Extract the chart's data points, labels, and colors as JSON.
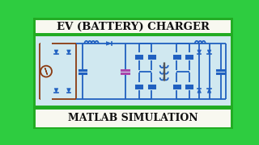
{
  "title_text": "EV (BATTERY) CHARGER",
  "subtitle_text": "MATLAB SIMULATION",
  "bg_outer": "#2ecc40",
  "bg_circuit": "#d0e8f0",
  "bg_banner": "#f8f8f0",
  "circuit_blue": "#2060c0",
  "circuit_brown": "#8b3a10",
  "title_color": "#111111",
  "title_fontsize": 9.5,
  "subtitle_fontsize": 9.0,
  "fig_width": 3.2,
  "fig_height": 1.8,
  "dpi": 100
}
